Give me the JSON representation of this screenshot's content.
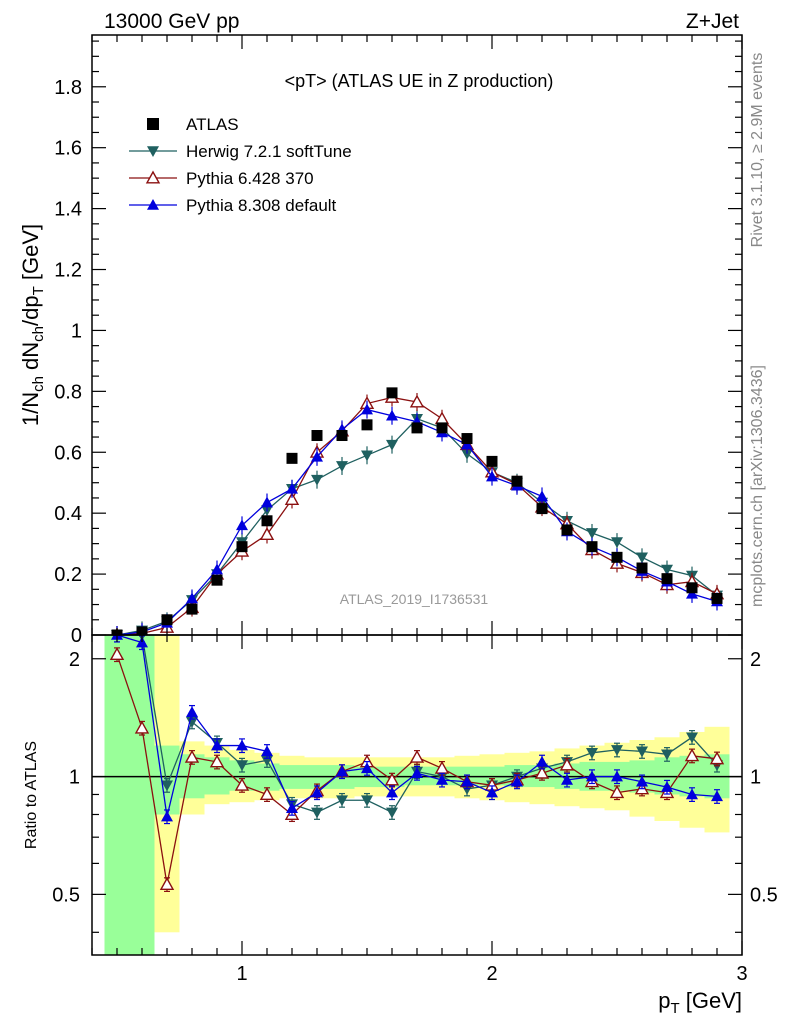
{
  "header": {
    "energy_label": "13000 GeV pp",
    "process_label": "Z+Jet",
    "plot_title": "<pT> (ATLAS UE in Z production)",
    "analysis_id": "ATLAS_2019_I1736531",
    "rivet_label": "Rivet 3.1.10, ≥ 2.9M events",
    "mcplots_label": "mcplots.cern.ch [arXiv:1306.3436]"
  },
  "axes": {
    "main_ylabel_parts": [
      "1/N",
      "ch",
      " dN",
      "ch",
      "/dp",
      "T",
      " [GeV]"
    ],
    "ratio_ylabel": "Ratio to ATLAS",
    "xlabel_main": "p",
    "xlabel_sub": "T",
    "xlabel_unit": " [GeV]",
    "x_tick_labels": [
      "1",
      "2",
      "3"
    ],
    "main_y_tick_labels": [
      "0",
      "0.2",
      "0.4",
      "0.6",
      "0.8",
      "1",
      "1.2",
      "1.4",
      "1.6",
      "1.8"
    ],
    "ratio_y_tick_labels": [
      "0.5",
      "1",
      "2"
    ]
  },
  "legend": [
    {
      "label": "ATLAS",
      "marker": "square",
      "color": "#000000"
    },
    {
      "label": "Herwig 7.2.1 softTune",
      "marker": "triangle-down",
      "color": "#1f6060"
    },
    {
      "label": "Pythia 6.428 370",
      "marker": "triangle-open",
      "color": "#8b1010"
    },
    {
      "label": "Pythia 8.308 default",
      "marker": "triangle-up",
      "color": "#0000dd"
    }
  ],
  "chart_data": {
    "type": "line",
    "x_range": [
      0.4,
      3.0
    ],
    "main_ylim": [
      0,
      1.97
    ],
    "ratio_ylim": [
      0.35,
      2.3
    ],
    "ratio_scale": "log",
    "x": [
      0.5,
      0.6,
      0.7,
      0.8,
      0.9,
      1.0,
      1.1,
      1.2,
      1.3,
      1.4,
      1.5,
      1.6,
      1.7,
      1.8,
      1.9,
      2.0,
      2.1,
      2.2,
      2.3,
      2.4,
      2.5,
      2.6,
      2.7,
      2.8,
      2.9
    ],
    "data": [
      0.0,
      0.01,
      0.05,
      0.085,
      0.18,
      0.29,
      0.375,
      0.58,
      0.655,
      0.655,
      0.69,
      0.795,
      0.68,
      0.68,
      0.645,
      0.57,
      0.505,
      0.415,
      0.345,
      0.29,
      0.255,
      0.22,
      0.185,
      0.155,
      0.12
    ],
    "series": [
      {
        "name": "Herwig 7.2.1 softTune",
        "values": [
          0.0,
          0.015,
          0.045,
          0.115,
          0.2,
          0.305,
          0.41,
          0.48,
          0.51,
          0.555,
          0.59,
          0.625,
          0.71,
          0.68,
          0.595,
          0.535,
          0.5,
          0.435,
          0.375,
          0.335,
          0.305,
          0.255,
          0.215,
          0.195,
          0.13
        ],
        "ratio": [
          2.3,
          2.3,
          0.95,
          1.38,
          1.22,
          1.07,
          1.1,
          0.85,
          0.81,
          0.87,
          0.87,
          0.81,
          1.03,
          1.0,
          0.93,
          0.95,
          1.0,
          1.05,
          1.09,
          1.15,
          1.17,
          1.16,
          1.14,
          1.26,
          1.07
        ]
      },
      {
        "name": "Pythia 6.428 370",
        "values": [
          0.0,
          0.005,
          0.025,
          0.09,
          0.2,
          0.275,
          0.33,
          0.445,
          0.6,
          0.67,
          0.76,
          0.78,
          0.765,
          0.71,
          0.625,
          0.535,
          0.495,
          0.42,
          0.365,
          0.28,
          0.235,
          0.205,
          0.165,
          0.175,
          0.135
        ],
        "ratio": [
          2.05,
          1.33,
          0.53,
          1.12,
          1.09,
          0.95,
          0.9,
          0.8,
          0.92,
          1.03,
          1.09,
          0.98,
          1.12,
          1.05,
          0.97,
          0.95,
          0.98,
          1.02,
          1.07,
          0.97,
          0.91,
          0.93,
          0.91,
          1.13,
          1.11
        ]
      },
      {
        "name": "Pythia 8.308 default",
        "values": [
          0.0,
          0.01,
          0.04,
          0.12,
          0.215,
          0.36,
          0.435,
          0.48,
          0.585,
          0.675,
          0.74,
          0.72,
          0.7,
          0.665,
          0.625,
          0.52,
          0.49,
          0.455,
          0.34,
          0.29,
          0.255,
          0.21,
          0.175,
          0.135,
          0.11
        ],
        "ratio": [
          2.3,
          2.2,
          0.79,
          1.46,
          1.2,
          1.2,
          1.16,
          0.83,
          0.91,
          1.03,
          1.05,
          0.91,
          1.02,
          0.98,
          0.97,
          0.91,
          0.97,
          1.09,
          0.98,
          1.0,
          1.0,
          0.97,
          0.94,
          0.9,
          0.89
        ]
      }
    ],
    "band_edges": [
      0.45,
      0.55,
      0.65,
      0.75,
      0.85,
      0.95,
      1.05,
      1.15,
      1.25,
      1.35,
      1.45,
      1.55,
      1.65,
      1.75,
      1.85,
      1.95,
      2.05,
      2.15,
      2.25,
      2.35,
      2.45,
      2.55,
      2.65,
      2.75,
      2.85,
      2.95
    ],
    "band_stat": [
      [
        0.35,
        2.3
      ],
      [
        0.35,
        2.3
      ],
      [
        0.8,
        1.2
      ],
      [
        0.88,
        1.14
      ],
      [
        0.9,
        1.12
      ],
      [
        0.92,
        1.1
      ],
      [
        0.92,
        1.08
      ],
      [
        0.93,
        1.07
      ],
      [
        0.93,
        1.07
      ],
      [
        0.93,
        1.07
      ],
      [
        0.94,
        1.06
      ],
      [
        0.94,
        1.06
      ],
      [
        0.95,
        1.06
      ],
      [
        0.95,
        1.06
      ],
      [
        0.95,
        1.06
      ],
      [
        0.95,
        1.06
      ],
      [
        0.94,
        1.07
      ],
      [
        0.94,
        1.07
      ],
      [
        0.93,
        1.08
      ],
      [
        0.92,
        1.09
      ],
      [
        0.92,
        1.09
      ],
      [
        0.91,
        1.1
      ],
      [
        0.9,
        1.12
      ],
      [
        0.89,
        1.13
      ],
      [
        0.88,
        1.14
      ]
    ],
    "band_total": [
      [
        0.35,
        2.3
      ],
      [
        0.35,
        2.3
      ],
      [
        0.4,
        2.3
      ],
      [
        0.8,
        1.23
      ],
      [
        0.85,
        1.2
      ],
      [
        0.86,
        1.17
      ],
      [
        0.87,
        1.15
      ],
      [
        0.88,
        1.13
      ],
      [
        0.88,
        1.12
      ],
      [
        0.88,
        1.12
      ],
      [
        0.89,
        1.12
      ],
      [
        0.89,
        1.12
      ],
      [
        0.89,
        1.12
      ],
      [
        0.89,
        1.12
      ],
      [
        0.88,
        1.13
      ],
      [
        0.87,
        1.14
      ],
      [
        0.86,
        1.15
      ],
      [
        0.85,
        1.16
      ],
      [
        0.84,
        1.18
      ],
      [
        0.83,
        1.2
      ],
      [
        0.82,
        1.22
      ],
      [
        0.79,
        1.24
      ],
      [
        0.77,
        1.26
      ],
      [
        0.74,
        1.3
      ],
      [
        0.72,
        1.34
      ]
    ]
  }
}
